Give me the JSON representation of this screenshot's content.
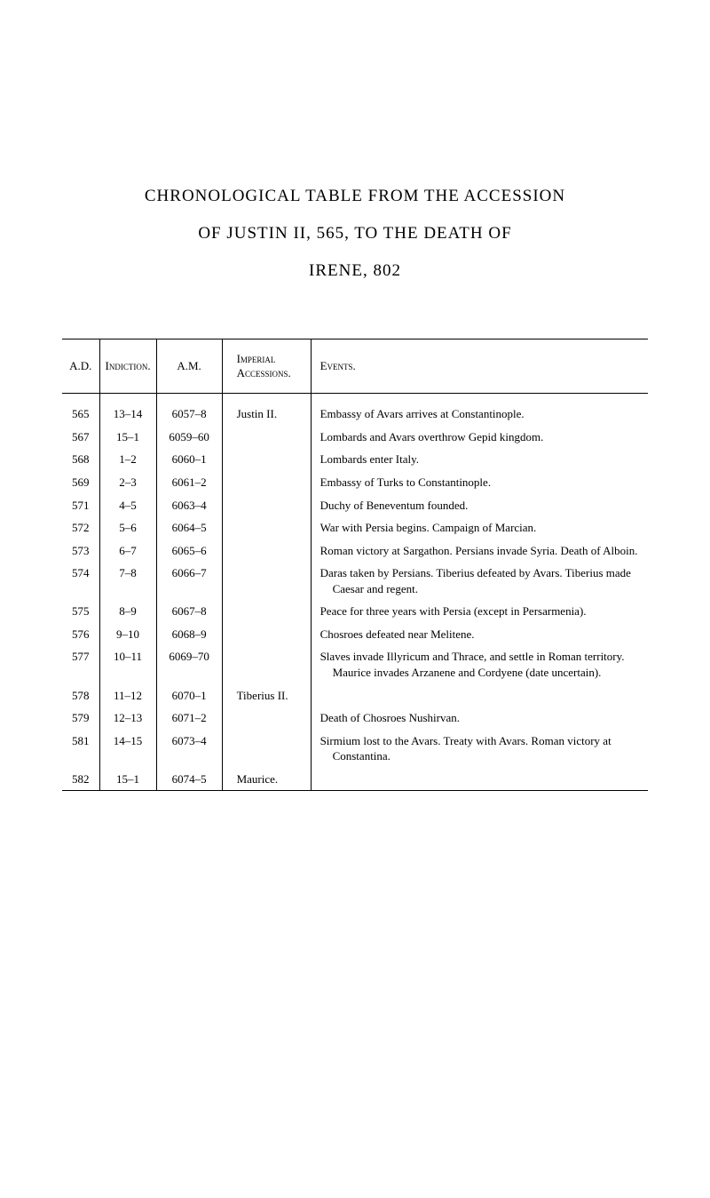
{
  "title": {
    "line1": "CHRONOLOGICAL TABLE FROM THE ACCESSION",
    "line2": "OF JUSTIN II, 565, TO THE DEATH OF",
    "line3": "IRENE, 802"
  },
  "headers": {
    "ad": "A.D.",
    "indiction": "Indiction.",
    "am": "A.M.",
    "imperial": "Imperial Accessions.",
    "events": "Events."
  },
  "rows": [
    {
      "ad": "565",
      "ind": "13–14",
      "am": "6057–8",
      "imp": "Justin II.",
      "ev": "Embassy of Avars arrives at Constantinople."
    },
    {
      "ad": "567",
      "ind": "15–1",
      "am": "6059–60",
      "imp": "",
      "ev": "Lombards and Avars overthrow Gepid kingdom."
    },
    {
      "ad": "568",
      "ind": "1–2",
      "am": "6060–1",
      "imp": "",
      "ev": "Lombards enter Italy."
    },
    {
      "ad": "569",
      "ind": "2–3",
      "am": "6061–2",
      "imp": "",
      "ev": "Embassy of Turks to Constantinople."
    },
    {
      "ad": "571",
      "ind": "4–5",
      "am": "6063–4",
      "imp": "",
      "ev": "Duchy of Beneventum founded."
    },
    {
      "ad": "572",
      "ind": "5–6",
      "am": "6064–5",
      "imp": "",
      "ev": "War with Persia begins. Campaign of Marcian."
    },
    {
      "ad": "573",
      "ind": "6–7",
      "am": "6065–6",
      "imp": "",
      "ev": "Roman victory at Sargathon. Persians invade Syria. Death of Alboin."
    },
    {
      "ad": "574",
      "ind": "7–8",
      "am": "6066–7",
      "imp": "",
      "ev": "Daras taken by Persians. Tiberius defeated by Avars. Tiberius made Caesar and regent."
    },
    {
      "ad": "575",
      "ind": "8–9",
      "am": "6067–8",
      "imp": "",
      "ev": "Peace for three years with Persia (except in Persarmenia)."
    },
    {
      "ad": "576",
      "ind": "9–10",
      "am": "6068–9",
      "imp": "",
      "ev": "Chosroes defeated near Melitene."
    },
    {
      "ad": "577",
      "ind": "10–11",
      "am": "6069–70",
      "imp": "",
      "ev": "Slaves invade Illyricum and Thrace, and settle in Roman territory. Maurice invades Arzanene and Cordyene (date uncertain)."
    },
    {
      "ad": "578",
      "ind": "11–12",
      "am": "6070–1",
      "imp": "Tiberius II.",
      "ev": ""
    },
    {
      "ad": "579",
      "ind": "12–13",
      "am": "6071–2",
      "imp": "",
      "ev": "Death of Chosroes Nushirvan."
    },
    {
      "ad": "581",
      "ind": "14–15",
      "am": "6073–4",
      "imp": "",
      "ev": "Sirmium lost to the Avars. Treaty with Avars. Roman victory at Constantina."
    },
    {
      "ad": "582",
      "ind": "15–1",
      "am": "6074–5",
      "imp": "Maurice.",
      "ev": ""
    }
  ],
  "style": {
    "page_bg": "#ffffff",
    "text_color": "#000000",
    "border_color": "#000000",
    "title_fontsize": 19,
    "body_fontsize": 13,
    "col_widths": {
      "ad": 42,
      "ind": 60,
      "am": 74,
      "imp": 100
    }
  }
}
